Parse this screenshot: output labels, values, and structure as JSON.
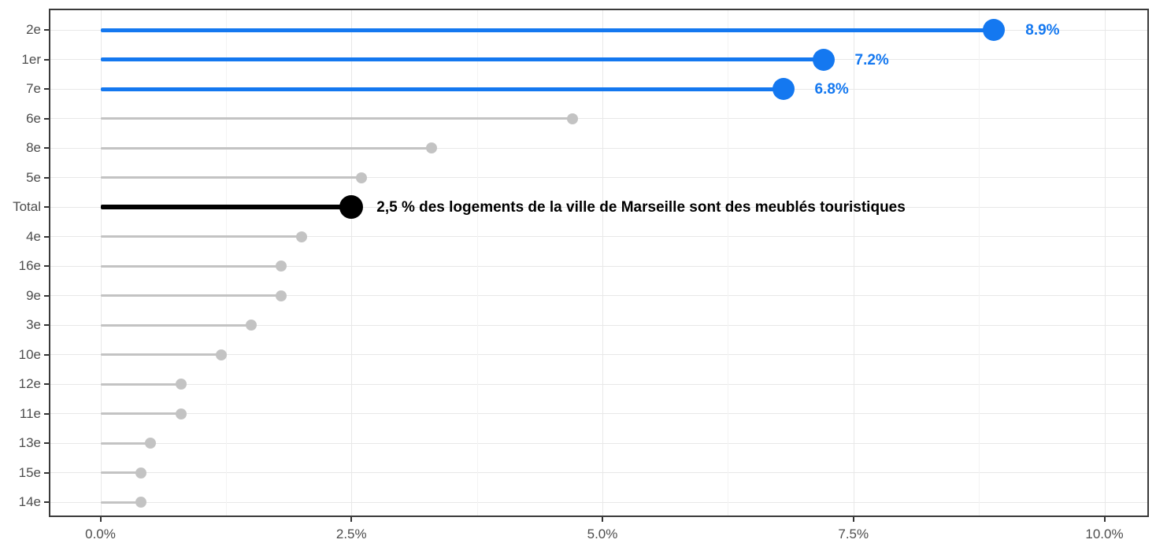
{
  "chart_data": {
    "type": "bar",
    "variant": "horizontal-lollipop",
    "title": "",
    "xlabel": "",
    "ylabel": "",
    "xlim": [
      0,
      10.5
    ],
    "grid": true,
    "legend": "none",
    "categories": [
      "2e",
      "1er",
      "7e",
      "6e",
      "8e",
      "5e",
      "Total",
      "4e",
      "16e",
      "9e",
      "3e",
      "10e",
      "12e",
      "11e",
      "13e",
      "15e",
      "14e"
    ],
    "values": [
      8.9,
      7.2,
      6.8,
      4.7,
      3.3,
      2.6,
      2.5,
      2.0,
      1.8,
      1.8,
      1.5,
      1.2,
      0.8,
      0.8,
      0.5,
      0.4,
      0.4
    ],
    "rows": [
      {
        "label": "2e",
        "value": 8.9,
        "emphasis": "highlight",
        "value_label": "8.9%"
      },
      {
        "label": "1er",
        "value": 7.2,
        "emphasis": "highlight",
        "value_label": "7.2%"
      },
      {
        "label": "7e",
        "value": 6.8,
        "emphasis": "highlight",
        "value_label": "6.8%"
      },
      {
        "label": "6e",
        "value": 4.7,
        "emphasis": "muted",
        "value_label": ""
      },
      {
        "label": "8e",
        "value": 3.3,
        "emphasis": "muted",
        "value_label": ""
      },
      {
        "label": "5e",
        "value": 2.6,
        "emphasis": "muted",
        "value_label": ""
      },
      {
        "label": "Total",
        "value": 2.5,
        "emphasis": "total",
        "value_label": "2,5 % des logements de la ville de Marseille sont des meublés touristiques"
      },
      {
        "label": "4e",
        "value": 2.0,
        "emphasis": "muted",
        "value_label": ""
      },
      {
        "label": "16e",
        "value": 1.8,
        "emphasis": "muted",
        "value_label": ""
      },
      {
        "label": "9e",
        "value": 1.8,
        "emphasis": "muted",
        "value_label": ""
      },
      {
        "label": "3e",
        "value": 1.5,
        "emphasis": "muted",
        "value_label": ""
      },
      {
        "label": "10e",
        "value": 1.2,
        "emphasis": "muted",
        "value_label": ""
      },
      {
        "label": "12e",
        "value": 0.8,
        "emphasis": "muted",
        "value_label": ""
      },
      {
        "label": "11e",
        "value": 0.8,
        "emphasis": "muted",
        "value_label": ""
      },
      {
        "label": "13e",
        "value": 0.5,
        "emphasis": "muted",
        "value_label": ""
      },
      {
        "label": "15e",
        "value": 0.4,
        "emphasis": "muted",
        "value_label": ""
      },
      {
        "label": "14e",
        "value": 0.4,
        "emphasis": "muted",
        "value_label": ""
      }
    ],
    "x_ticks": [
      {
        "value": 0,
        "label": "0.0%"
      },
      {
        "value": 2.5,
        "label": "2.5%"
      },
      {
        "value": 5,
        "label": "5.0%"
      },
      {
        "value": 7.5,
        "label": "7.5%"
      },
      {
        "value": 10,
        "label": "10.0%"
      }
    ],
    "x_minor_ticks": [
      1.25,
      3.75,
      6.25,
      8.75
    ],
    "colors": {
      "highlight": "#1478f0",
      "muted": "#c3c3c3",
      "total": "#000000",
      "grid_major": "#e8e8e8",
      "grid_minor": "#f3f3f3",
      "axis_text": "#4d4d4d",
      "panel_border": "#3a3a3a"
    }
  }
}
